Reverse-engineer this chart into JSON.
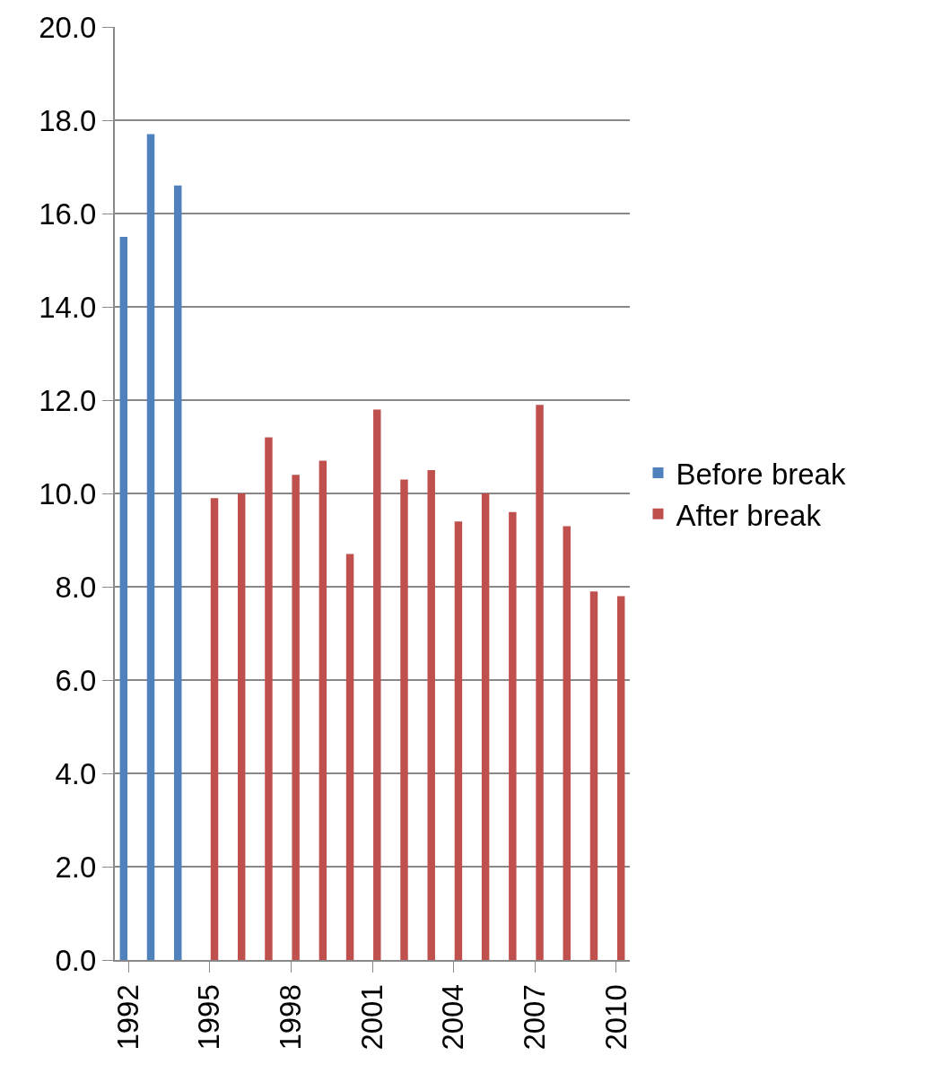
{
  "chart_data": {
    "type": "bar",
    "categories": [
      "1992",
      null,
      null,
      "1995",
      null,
      null,
      "1998",
      null,
      null,
      "2001",
      null,
      null,
      "2004",
      null,
      null,
      "2007",
      null,
      null,
      "2010"
    ],
    "series": [
      {
        "name": "Before break",
        "color": "#4f81bd",
        "values": [
          15.5,
          17.7,
          16.6,
          null,
          null,
          null,
          null,
          null,
          null,
          null,
          null,
          null,
          null,
          null,
          null,
          null,
          null,
          null,
          null
        ]
      },
      {
        "name": "After break",
        "color": "#c0504d",
        "values": [
          null,
          null,
          null,
          9.9,
          10.0,
          11.2,
          10.4,
          10.7,
          8.7,
          11.8,
          10.3,
          10.5,
          9.4,
          10.0,
          9.6,
          11.9,
          9.3,
          7.9,
          7.8
        ]
      }
    ],
    "ylim": [
      0,
      20
    ],
    "yticks": [
      {
        "value": 0,
        "label": "0.0"
      },
      {
        "value": 2,
        "label": "2.0"
      },
      {
        "value": 4,
        "label": "4.0"
      },
      {
        "value": 6,
        "label": "6.0"
      },
      {
        "value": 8,
        "label": "8.0"
      },
      {
        "value": 10,
        "label": "10.0"
      },
      {
        "value": 12,
        "label": "12.0"
      },
      {
        "value": 14,
        "label": "14.0"
      },
      {
        "value": 16,
        "label": "16.0"
      },
      {
        "value": 18,
        "label": "18.0"
      },
      {
        "value": 20,
        "label": "20.0"
      }
    ],
    "grid": "y",
    "legend": "right"
  }
}
